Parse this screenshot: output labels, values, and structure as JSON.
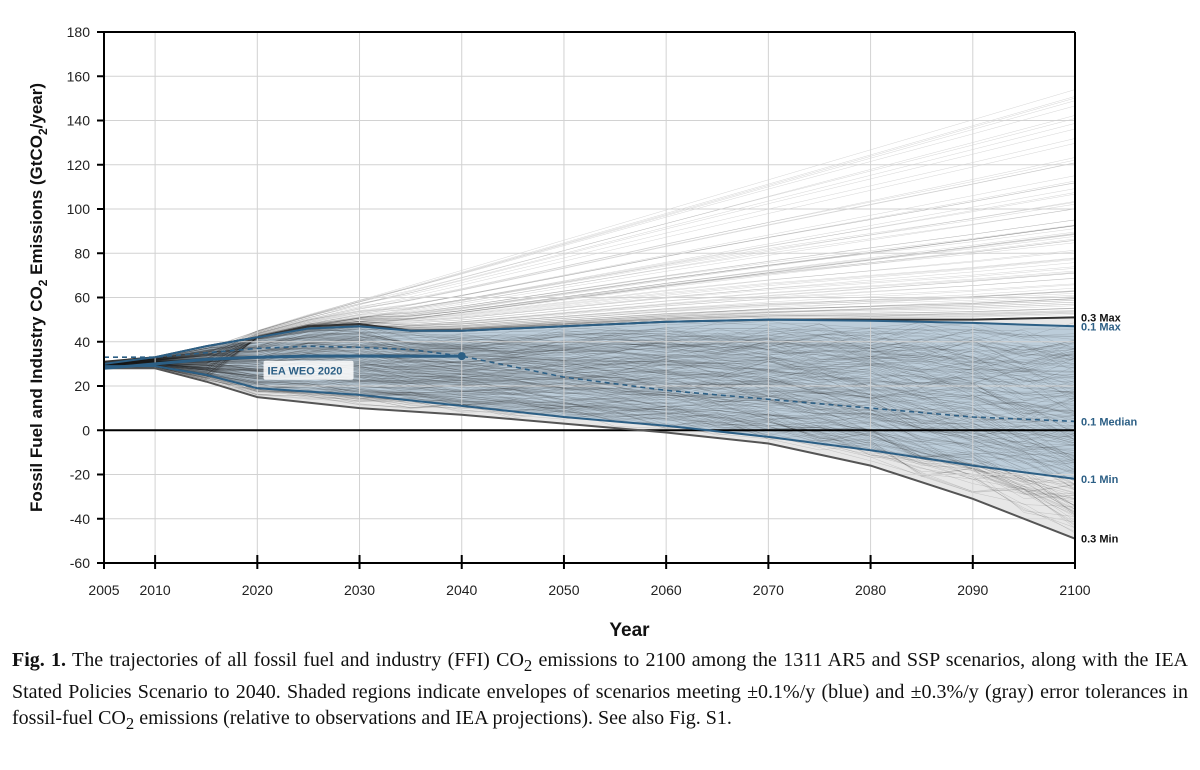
{
  "chart_data": {
    "type": "line",
    "title": "",
    "xlabel": "Year",
    "ylabel_parts": [
      "Fossil Fuel and Industry CO",
      "2",
      " Emissions (GtCO",
      "2",
      "/year)"
    ],
    "xlim": [
      2005,
      2100
    ],
    "ylim": [
      -60,
      180
    ],
    "x_ticks": [
      2005,
      2010,
      2020,
      2030,
      2040,
      2050,
      2060,
      2070,
      2080,
      2090,
      2100
    ],
    "y_ticks": [
      -60,
      -40,
      -20,
      0,
      20,
      40,
      60,
      80,
      100,
      120,
      140,
      160,
      180
    ],
    "grid": true,
    "scenario_count": 1311,
    "envelopes": [
      {
        "name": "0.3",
        "color": "#e6e6e6",
        "max_line": {
          "label": "0.3 Max",
          "color": "#333333",
          "points": [
            [
              2005,
              31
            ],
            [
              2010,
              33
            ],
            [
              2015,
              38
            ],
            [
              2020,
              42
            ],
            [
              2025,
              47
            ],
            [
              2030,
              48
            ],
            [
              2035,
              45
            ],
            [
              2040,
              45
            ],
            [
              2045,
              46
            ],
            [
              2050,
              47
            ],
            [
              2060,
              49
            ],
            [
              2070,
              50
            ],
            [
              2080,
              50
            ],
            [
              2090,
              50
            ],
            [
              2100,
              51
            ]
          ]
        },
        "min_line": {
          "label": "0.3 Min",
          "color": "#555555",
          "points": [
            [
              2005,
              28
            ],
            [
              2010,
              28
            ],
            [
              2015,
              22
            ],
            [
              2020,
              15
            ],
            [
              2030,
              10
            ],
            [
              2040,
              7
            ],
            [
              2050,
              3
            ],
            [
              2060,
              -1
            ],
            [
              2070,
              -6
            ],
            [
              2080,
              -16
            ],
            [
              2090,
              -31
            ],
            [
              2100,
              -49
            ]
          ]
        }
      },
      {
        "name": "0.1",
        "color": "#b9cbd9",
        "max_line": {
          "label": "0.1 Max",
          "color": "#2c5f85",
          "points": [
            [
              2005,
              30
            ],
            [
              2010,
              33
            ],
            [
              2015,
              38
            ],
            [
              2020,
              42
            ],
            [
              2025,
              46
            ],
            [
              2030,
              47
            ],
            [
              2035,
              45
            ],
            [
              2040,
              45
            ],
            [
              2050,
              47
            ],
            [
              2060,
              49
            ],
            [
              2070,
              50
            ],
            [
              2080,
              49.5
            ],
            [
              2090,
              48.5
            ],
            [
              2100,
              47
            ]
          ]
        },
        "median_line": {
          "label": "0.1 Median",
          "color": "#2c5f85",
          "dashed": true,
          "points": [
            [
              2005,
              33
            ],
            [
              2010,
              33
            ],
            [
              2015,
              35
            ],
            [
              2020,
              37
            ],
            [
              2025,
              38
            ],
            [
              2030,
              37.5
            ],
            [
              2035,
              36.5
            ],
            [
              2040,
              33.5
            ],
            [
              2050,
              24
            ],
            [
              2060,
              18
            ],
            [
              2070,
              14
            ],
            [
              2080,
              10
            ],
            [
              2090,
              6
            ],
            [
              2100,
              4
            ]
          ]
        },
        "min_line": {
          "label": "0.1 Min",
          "color": "#2c5f85",
          "points": [
            [
              2005,
              29
            ],
            [
              2010,
              29
            ],
            [
              2015,
              25
            ],
            [
              2020,
              19
            ],
            [
              2030,
              16
            ],
            [
              2040,
              11
            ],
            [
              2050,
              6
            ],
            [
              2060,
              2
            ],
            [
              2070,
              -3
            ],
            [
              2080,
              -9
            ],
            [
              2090,
              -16
            ],
            [
              2100,
              -22
            ]
          ]
        }
      }
    ],
    "iea_weo": {
      "label": "IEA WEO 2020",
      "color": "#2c5f85",
      "points": [
        [
          2005,
          28
        ],
        [
          2010,
          30
        ],
        [
          2015,
          32
        ],
        [
          2020,
          33
        ],
        [
          2025,
          33.5
        ],
        [
          2030,
          33.5
        ],
        [
          2035,
          33.5
        ],
        [
          2040,
          33.5
        ]
      ]
    }
  },
  "caption": {
    "label": "Fig. 1.",
    "segments": [
      " The trajectories of all fossil fuel and industry (FFI) CO",
      "2",
      " emissions to 2100 among the 1311 AR5 and SSP scenarios, along with the IEA Stated Policies Scenario to 2040. Shaded regions indicate envelopes of scenarios meeting ±0.1%/y (blue) and ±0.3%/y (gray) error tolerances in fossil-fuel CO",
      "2",
      " emissions (relative to observations and IEA projections). See also Fig. S1."
    ]
  }
}
